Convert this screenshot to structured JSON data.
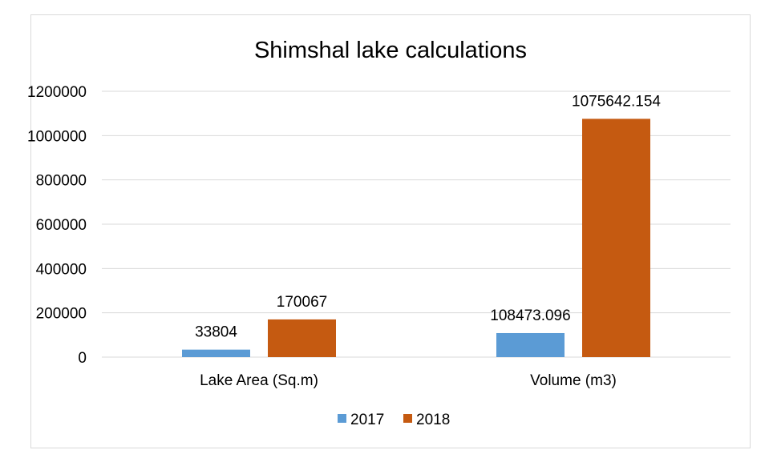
{
  "chart_data": {
    "type": "bar",
    "title": "Shimshal lake calculations",
    "categories": [
      "Lake Area (Sq.m)",
      "Volume (m3)"
    ],
    "series": [
      {
        "name": "2017",
        "color": "#5b9bd5",
        "values": [
          33804,
          108473.096
        ],
        "labels": [
          "33804",
          "108473.096"
        ]
      },
      {
        "name": "2018",
        "color": "#c55a11",
        "values": [
          170067,
          1075642.154
        ],
        "labels": [
          "170067",
          "1075642.154"
        ]
      }
    ],
    "yticks": [
      "0",
      "200000",
      "400000",
      "600000",
      "800000",
      "1000000",
      "1200000"
    ],
    "ylim": [
      0,
      1200000
    ],
    "xlabel": "",
    "ylabel": "",
    "grid": true,
    "legend": "bottom",
    "gridColor": "#d9d9d9"
  }
}
